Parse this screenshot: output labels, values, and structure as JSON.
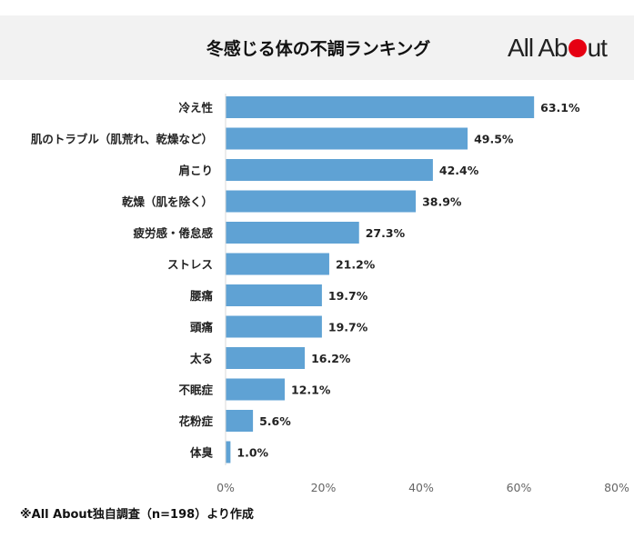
{
  "header": {
    "title": "冬感じる体の不調ランキング",
    "logo_text": "All About",
    "brand_color": "#e60012"
  },
  "footnote": "※All About独自調査（n=198）より作成",
  "chart_data": {
    "type": "bar",
    "orientation": "horizontal",
    "title": "冬感じる体の不調ランキング",
    "categories": [
      "冷え性",
      "肌のトラブル（肌荒れ、乾燥など）",
      "肩こり",
      "乾燥（肌を除く）",
      "疲労感・倦怠感",
      "ストレス",
      "腰痛",
      "頭痛",
      "太る",
      "不眠症",
      "花粉症",
      "体臭"
    ],
    "values": [
      63.1,
      49.5,
      42.4,
      38.9,
      27.3,
      21.2,
      19.7,
      19.7,
      16.2,
      12.1,
      5.6,
      1.0
    ],
    "data_labels": [
      "63.1%",
      "49.5%",
      "42.4%",
      "38.9%",
      "27.3%",
      "21.2%",
      "19.7%",
      "19.7%",
      "16.2%",
      "12.1%",
      "5.6%",
      "1.0%"
    ],
    "xlim": [
      0,
      80
    ],
    "xticks": [
      "0%",
      "20%",
      "40%",
      "60%",
      "80%"
    ],
    "grid": false,
    "bar_color": "#5fa2d4"
  }
}
